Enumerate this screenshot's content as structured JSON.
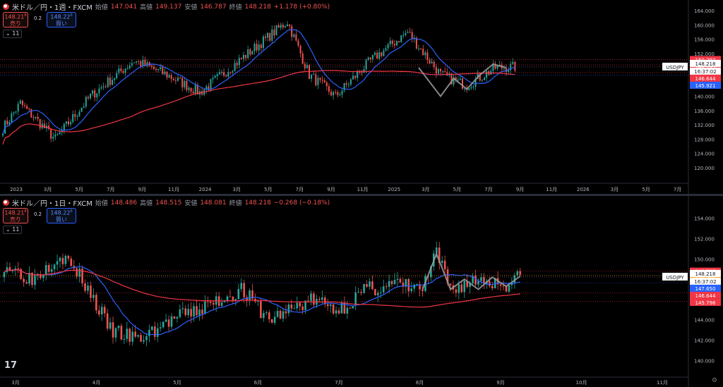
{
  "colors": {
    "up": "#26a69a",
    "down": "#ef5350",
    "ma_fast": "#2962ff",
    "ma_slow": "#f23645",
    "pattern": "#9e9e9e"
  },
  "chart_data": [
    {
      "type": "candlestick",
      "title": "米ドル／円・1週・FXCM",
      "ohlc": {
        "open_label": "始値",
        "open": "147.041",
        "high_label": "高値",
        "high": "149.137",
        "low_label": "安値",
        "low": "146.787",
        "close_label": "終値",
        "close": "148.218",
        "change": "+1.178 (+0.80%)"
      },
      "sell": {
        "price": "148.21",
        "sup": "8",
        "label": "売り"
      },
      "buy": {
        "price": "148.22",
        "sup": "0",
        "label": "買い"
      },
      "spread": "0.2",
      "indicator_count": "11",
      "ylim": [
        116,
        165
      ],
      "y_ticks": [
        "164.000",
        "160.000",
        "156.000",
        "152.000",
        "148.000",
        "144.000",
        "140.000",
        "136.000",
        "132.000",
        "128.000",
        "124.000",
        "120.000"
      ],
      "x_ticks": [
        "2023",
        "3月",
        "5月",
        "7月",
        "9月",
        "11月",
        "2024",
        "3月",
        "5月",
        "7月",
        "9月",
        "11月",
        "2025",
        "3月",
        "5月",
        "7月",
        "9月",
        "11月",
        "2026",
        "3月",
        "5月",
        "7月"
      ],
      "price_tags": [
        {
          "text": "150.292",
          "color": "#f23645",
          "value": 150.292
        },
        {
          "text": "148.795",
          "color": "#f23645",
          "value": 148.795
        },
        {
          "text": "USDJPY",
          "color": "#ffffff",
          "value": 148.218,
          "kind": "symbol"
        },
        {
          "text": "148.218",
          "color": "#ffffff",
          "value": 148.218,
          "kind": "current"
        },
        {
          "text": "16:37:02",
          "color": "#ffffff",
          "value": 148.218,
          "kind": "timer"
        },
        {
          "text": "146.644",
          "color": "#f23645",
          "value": 146.644
        },
        {
          "text": "145.921",
          "color": "#2962ff",
          "value": 145.921
        }
      ]
    },
    {
      "type": "candlestick",
      "title": "米ドル／円・1日・FXCM",
      "ohlc": {
        "open_label": "始値",
        "open": "148.486",
        "high_label": "高値",
        "high": "148.515",
        "low_label": "安値",
        "low": "148.081",
        "close_label": "終値",
        "close": "148.218",
        "change": "−0.268 (−0.18%)"
      },
      "sell": {
        "price": "148.21",
        "sup": "8",
        "label": "売り"
      },
      "buy": {
        "price": "148.22",
        "sup": "0",
        "label": "買い"
      },
      "spread": "0.2",
      "indicator_count": "11",
      "ylim": [
        138.5,
        155.5
      ],
      "y_ticks": [
        "154.000",
        "152.000",
        "150.000",
        "148.000",
        "146.000",
        "144.000",
        "142.000",
        "140.000"
      ],
      "x_ticks": [
        "3月",
        "4月",
        "5月",
        "6月",
        "7月",
        "8月",
        "9月",
        "10月",
        "11月"
      ],
      "price_tags": [
        {
          "text": "148.795",
          "color": "#f23645",
          "value": 148.795
        },
        {
          "text": "148.366",
          "color": "#ff9800",
          "value": 148.366
        },
        {
          "text": "USDJPY",
          "color": "#ffffff",
          "value": 148.218,
          "kind": "symbol"
        },
        {
          "text": "148.218",
          "color": "#ffffff",
          "value": 148.218,
          "kind": "current"
        },
        {
          "text": "16:37:02",
          "color": "#ffffff",
          "value": 148.218,
          "kind": "timer"
        },
        {
          "text": "147.650",
          "color": "#2962ff",
          "value": 147.65
        },
        {
          "text": "146.644",
          "color": "#f23645",
          "value": 146.644
        },
        {
          "text": "145.796",
          "color": "#f23645",
          "value": 145.796
        }
      ]
    }
  ],
  "logo": "17",
  "settings_icon": "gear-icon"
}
